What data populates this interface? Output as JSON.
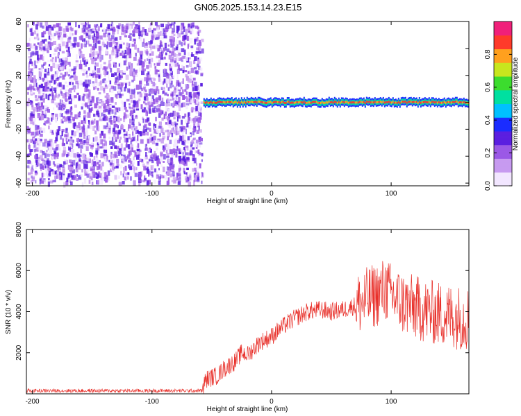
{
  "title": "GN05.2025.153.14.23.E15",
  "colors": {
    "noise_purple": "#6a1bd6",
    "signal_red": "#e8302a",
    "axis": "#000000",
    "colormap": [
      "#f2e6ff",
      "#c79af0",
      "#9b59e6",
      "#5b1fe0",
      "#1a2cff",
      "#00c0ff",
      "#00e0a0",
      "#3cdc2e",
      "#c8e61e",
      "#ffa01e",
      "#ff3a2a",
      "#f0207a"
    ]
  },
  "chart_data": [
    {
      "type": "heatmap",
      "name": "spectrogram",
      "xlabel": "Height of straight line (km)",
      "ylabel": "Frequency (Hz)",
      "xlim": [
        -205,
        165
      ],
      "ylim": [
        -62,
        60
      ],
      "xticks": [
        -200,
        -100,
        0,
        100
      ],
      "yticks": [
        60,
        40,
        20,
        0,
        -20,
        -40,
        -60
      ],
      "noise_region_x": [
        -205,
        -57
      ],
      "signal_start_x": -57,
      "signal_frequency_hz": 0,
      "colorbar": {
        "label": "Normalized spectral amplitude",
        "range": [
          0.0,
          1.0
        ],
        "ticks": [
          0.0,
          0.2,
          0.4,
          0.6,
          0.8
        ]
      }
    },
    {
      "type": "line",
      "name": "snr",
      "xlabel": "Height of straight line (km)",
      "ylabel": "SNR (10 * v/v)",
      "xlim": [
        -205,
        165
      ],
      "ylim": [
        0,
        8000
      ],
      "xticks": [
        -200,
        -100,
        0,
        100
      ],
      "yticks": [
        8000,
        6000,
        4000,
        2000
      ],
      "series": [
        {
          "color": "#e8302a",
          "x": [
            -205,
            -150,
            -100,
            -58,
            -55,
            -45,
            -40,
            -30,
            -25,
            -20,
            -10,
            0,
            10,
            20,
            30,
            40,
            50,
            60,
            70,
            80,
            90,
            95,
            100,
            110,
            120,
            130,
            140,
            150,
            160,
            165
          ],
          "y": [
            150,
            150,
            150,
            150,
            700,
            900,
            1200,
            1600,
            2000,
            1900,
            2500,
            2800,
            3300,
            3700,
            4000,
            4100,
            4000,
            4100,
            4300,
            4600,
            4900,
            5100,
            4800,
            4400,
            4200,
            4000,
            3900,
            3800,
            3700,
            3700
          ]
        }
      ]
    }
  ]
}
